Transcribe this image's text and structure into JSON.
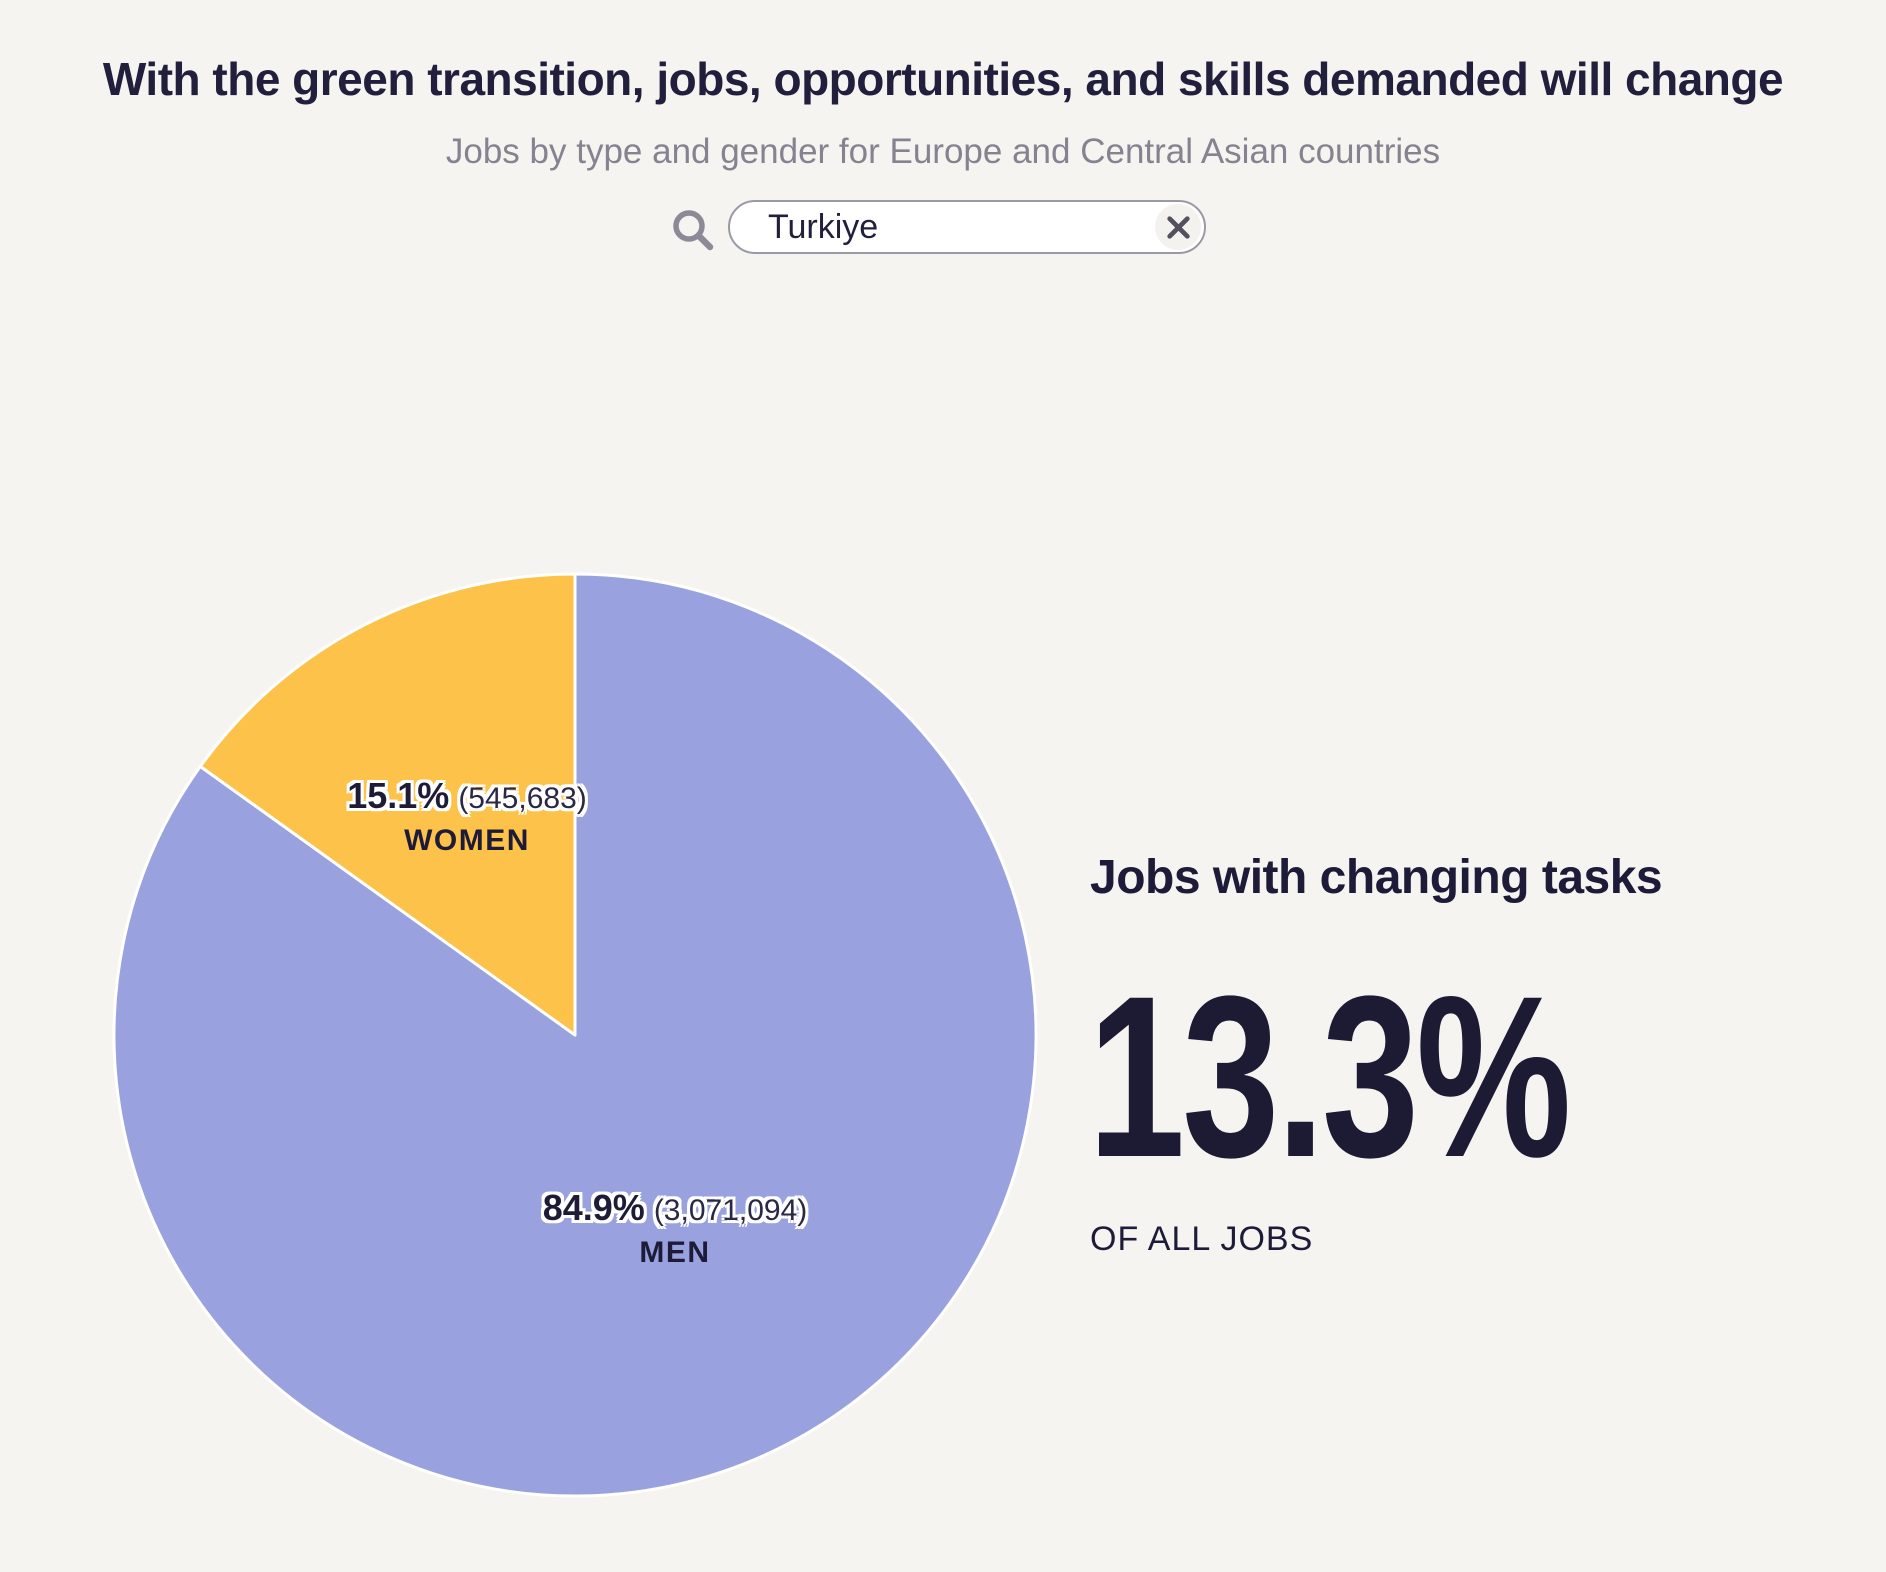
{
  "header": {
    "title": "With the green transition, jobs, opportunities, and skills demanded will change",
    "subtitle": "Jobs by type and gender for Europe and Central Asian countries"
  },
  "search": {
    "value": "Turkiye",
    "icon": "search-icon",
    "clear_icon": "close-icon"
  },
  "chart_data": {
    "type": "pie",
    "country": "Turkiye",
    "categories": [
      "MEN",
      "WOMEN"
    ],
    "values": [
      84.9,
      15.1
    ],
    "counts": [
      3071094,
      545683
    ],
    "start_angle": "top",
    "direction": "clockwise",
    "slices": [
      {
        "label": "MEN",
        "percent": 84.9,
        "percent_label": "84.9%",
        "count": 3071094,
        "count_label": "(3,071,094)",
        "color": "#99a2de"
      },
      {
        "label": "WOMEN",
        "percent": 15.1,
        "percent_label": "15.1%",
        "count": 545683,
        "count_label": "(545,683)",
        "color": "#fdc24a"
      }
    ]
  },
  "stat_panel": {
    "heading": "Jobs with changing tasks",
    "value": "13.3%",
    "caption": "OF ALL JOBS"
  },
  "colors": {
    "background": "#f5f4f1",
    "text_navy": "#1e1b38",
    "subtitle_gray": "#85838f",
    "men_purple": "#99a2de",
    "women_yellow": "#fdc24a",
    "slice_divider": "#ffffff"
  }
}
